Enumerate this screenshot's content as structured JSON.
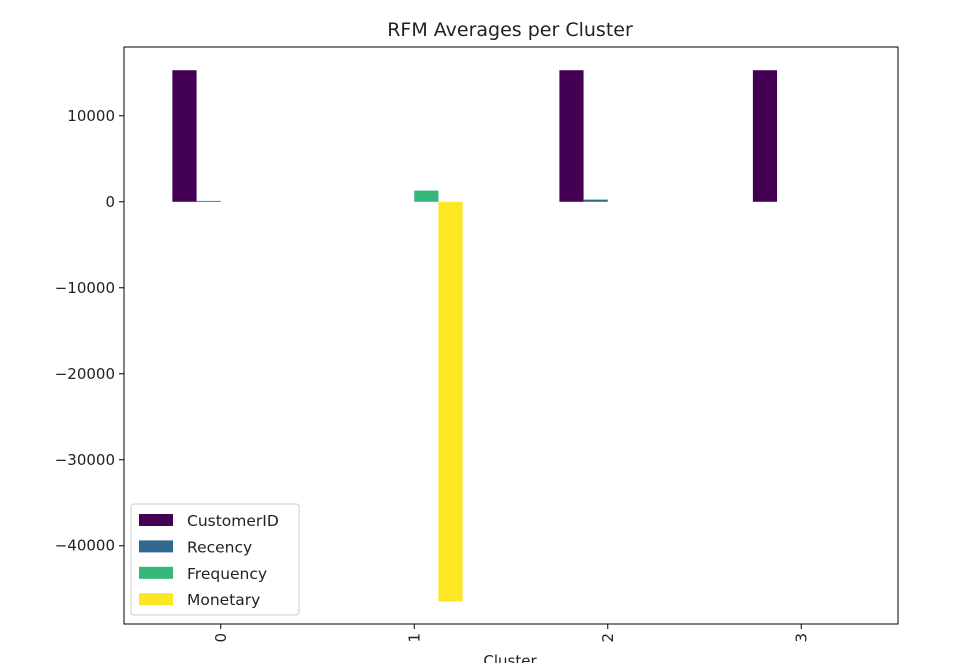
{
  "chart_data": {
    "type": "bar",
    "title": "RFM Averages per Cluster",
    "xlabel": "Cluster",
    "ylabel": "",
    "categories": [
      "0",
      "1",
      "2",
      "3"
    ],
    "series": [
      {
        "name": "CustomerID",
        "color": "#440154",
        "values": [
          15300,
          0,
          15300,
          15300
        ]
      },
      {
        "name": "Recency",
        "color": "#31688e",
        "values": [
          100,
          0,
          250,
          0
        ]
      },
      {
        "name": "Frequency",
        "color": "#35b779",
        "values": [
          0,
          1300,
          0,
          0
        ]
      },
      {
        "name": "Monetary",
        "color": "#fde725",
        "values": [
          0,
          -46500,
          0,
          0
        ]
      }
    ],
    "yticks": [
      10000,
      0,
      -10000,
      -20000,
      -30000,
      -40000
    ],
    "ytick_labels": [
      "10000",
      "0",
      "−10000",
      "−20000",
      "−30000",
      "−40000"
    ],
    "ylim": [
      -49100,
      18000
    ],
    "grid": false,
    "legend_position": "lower-left",
    "xtick_rotation": 90
  }
}
